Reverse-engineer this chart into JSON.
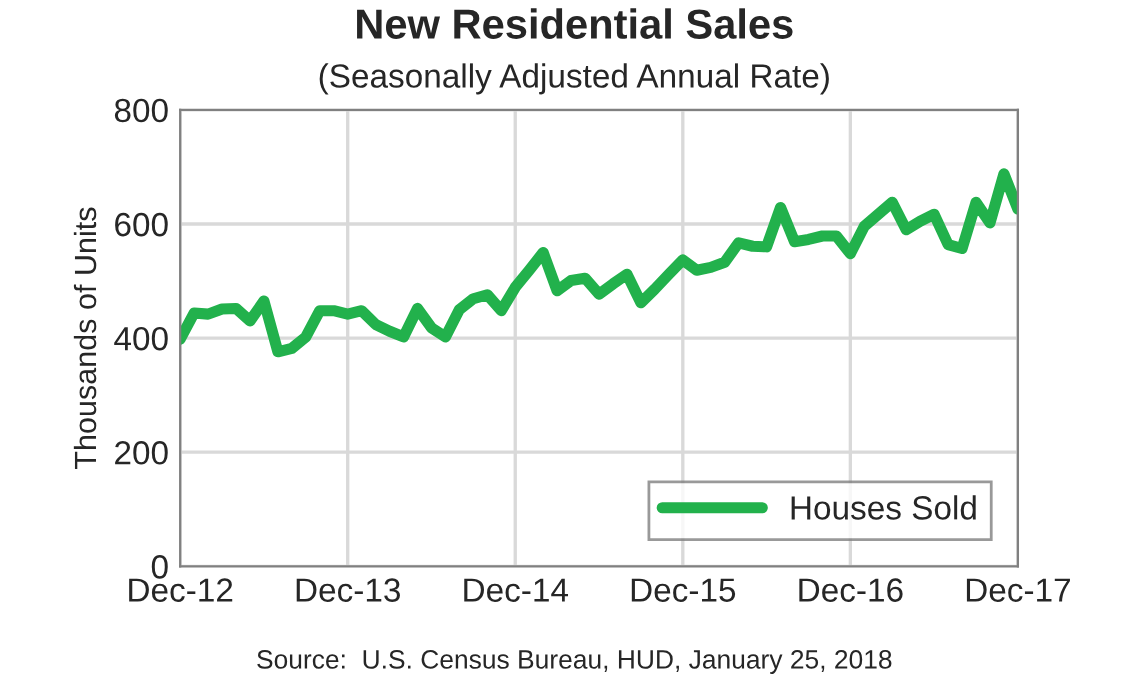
{
  "chart_data": {
    "type": "line",
    "title": "New Residential Sales",
    "subtitle": "(Seasonally Adjusted Annual Rate)",
    "ylabel": "Thousands of Units",
    "annotations": [
      "Source:  U.S. Census Bureau, HUD, January 25, 2018"
    ],
    "categories": [
      "Dec-12",
      null,
      null,
      null,
      null,
      null,
      null,
      null,
      null,
      null,
      null,
      null,
      "Dec-13",
      null,
      null,
      null,
      null,
      null,
      null,
      null,
      null,
      null,
      null,
      null,
      "Dec-14",
      null,
      null,
      null,
      null,
      null,
      null,
      null,
      null,
      null,
      null,
      null,
      "Dec-15",
      null,
      null,
      null,
      null,
      null,
      null,
      null,
      null,
      null,
      null,
      null,
      "Dec-16",
      null,
      null,
      null,
      null,
      null,
      null,
      null,
      null,
      null,
      null,
      null,
      "Dec-17"
    ],
    "series": [
      {
        "name": "Houses Sold",
        "color": "#22b14c",
        "values": [
          398,
          444,
          442,
          451,
          452,
          430,
          465,
          376,
          382,
          402,
          448,
          448,
          442,
          448,
          424,
          412,
          402,
          452,
          418,
          402,
          450,
          469,
          476,
          448,
          489,
          519,
          550,
          483,
          501,
          505,
          477,
          495,
          512,
          462,
          486,
          512,
          537,
          519,
          524,
          533,
          567,
          561,
          560,
          629,
          569,
          573,
          579,
          579,
          548,
          596,
          617,
          638,
          590,
          605,
          617,
          564,
          557,
          638,
          602,
          688,
          626
        ]
      }
    ],
    "ylim": [
      0,
      800
    ],
    "yticks": [
      0,
      200,
      400,
      600,
      800
    ],
    "grid": true,
    "legend": "bottom right",
    "line_style": "solid",
    "marker": "none"
  }
}
